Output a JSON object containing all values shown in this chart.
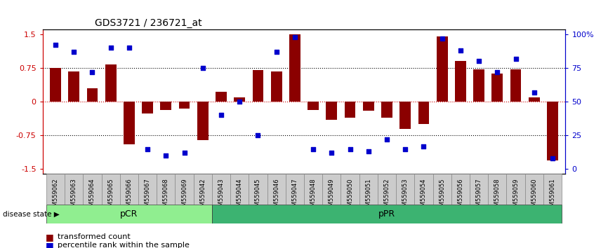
{
  "title": "GDS3721 / 236721_at",
  "samples": [
    "GSM559062",
    "GSM559063",
    "GSM559064",
    "GSM559065",
    "GSM559066",
    "GSM559067",
    "GSM559068",
    "GSM559069",
    "GSM559042",
    "GSM559043",
    "GSM559044",
    "GSM559045",
    "GSM559046",
    "GSM559047",
    "GSM559048",
    "GSM559049",
    "GSM559050",
    "GSM559051",
    "GSM559052",
    "GSM559053",
    "GSM559054",
    "GSM559055",
    "GSM559056",
    "GSM559057",
    "GSM559058",
    "GSM559059",
    "GSM559060",
    "GSM559061"
  ],
  "bar_values": [
    0.75,
    0.68,
    0.3,
    0.83,
    -0.95,
    -0.27,
    -0.18,
    -0.16,
    -0.85,
    0.22,
    0.1,
    0.7,
    0.68,
    1.5,
    -0.18,
    -0.4,
    -0.35,
    -0.2,
    -0.35,
    -0.6,
    -0.5,
    1.45,
    0.9,
    0.72,
    0.62,
    0.72,
    0.1,
    -1.3
  ],
  "percentile_values": [
    92,
    87,
    72,
    90,
    90,
    15,
    10,
    12,
    75,
    40,
    50,
    25,
    87,
    98,
    15,
    12,
    15,
    13,
    22,
    15,
    17,
    97,
    88,
    80,
    72,
    82,
    57,
    8
  ],
  "bar_color": "#8B0000",
  "dot_color": "#0000CC",
  "zero_line_color": "#CC0000",
  "grid_line_color": "#000000",
  "ylim": [
    -1.6,
    1.6
  ],
  "yticks_left": [
    -1.5,
    -0.75,
    0.0,
    0.75,
    1.5
  ],
  "yticks_right": [
    0,
    25,
    50,
    75,
    100
  ],
  "pCR_count": 9,
  "pPR_count": 19,
  "pCR_color": "#90EE90",
  "pPR_color": "#3CB371",
  "label_pCR": "pCR",
  "label_pPR": "pPR",
  "disease_state_label": "disease state",
  "legend_bar_label": "transformed count",
  "legend_dot_label": "percentile rank within the sample",
  "background_color": "#ffffff",
  "axis_bg_color": "#ffffff",
  "tick_bg_color": "#CCCCCC",
  "tick_edge_color": "#888888"
}
